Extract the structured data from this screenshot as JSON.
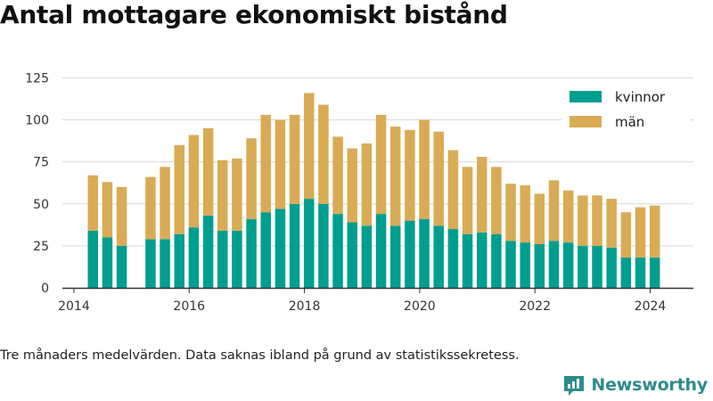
{
  "header": {
    "title": "Antal mottagare ekonomiskt bistånd"
  },
  "footer": {
    "note": "Tre månaders medelvärden. Data saknas ibland på grund av statistikssekretess.",
    "brand": "Newsworthy"
  },
  "colors": {
    "kvinnor": "#009e8f",
    "man": "#d9ab54",
    "grid": "#d9d9d9",
    "axis": "#333333",
    "brand": "#2c8c8c"
  },
  "chart_data": {
    "type": "bar",
    "stacked": true,
    "title": "Antal mottagare ekonomiskt bistånd",
    "xlabel": "",
    "ylabel": "",
    "ylim": [
      0,
      130
    ],
    "xlim": [
      2013.8,
      2024.75
    ],
    "y_ticks": [
      0,
      25,
      50,
      75,
      100,
      125
    ],
    "x_ticks": [
      2014,
      2016,
      2018,
      2020,
      2022,
      2024
    ],
    "grid": true,
    "legend_position": "top-right",
    "x": [
      2014.33,
      2014.58,
      2014.83,
      2015.33,
      2015.58,
      2015.83,
      2016.08,
      2016.33,
      2016.58,
      2016.83,
      2017.08,
      2017.33,
      2017.58,
      2017.83,
      2018.08,
      2018.33,
      2018.58,
      2018.83,
      2019.08,
      2019.33,
      2019.58,
      2019.83,
      2020.08,
      2020.33,
      2020.58,
      2020.83,
      2021.08,
      2021.33,
      2021.58,
      2021.83,
      2022.08,
      2022.33,
      2022.58,
      2022.83,
      2023.08,
      2023.33,
      2023.58,
      2023.83,
      2024.08
    ],
    "series": [
      {
        "name": "kvinnor",
        "values": [
          34,
          30,
          25,
          29,
          29,
          32,
          36,
          43,
          34,
          34,
          41,
          45,
          47,
          50,
          53,
          50,
          44,
          39,
          37,
          44,
          37,
          40,
          41,
          37,
          35,
          32,
          33,
          32,
          28,
          27,
          26,
          28,
          27,
          25,
          25,
          24,
          18,
          18,
          18
        ]
      },
      {
        "name": "män",
        "values": [
          33,
          33,
          35,
          37,
          43,
          53,
          55,
          52,
          42,
          43,
          48,
          58,
          53,
          53,
          63,
          59,
          46,
          44,
          49,
          59,
          59,
          54,
          59,
          56,
          47,
          40,
          45,
          40,
          34,
          34,
          30,
          36,
          31,
          30,
          30,
          29,
          27,
          30,
          31
        ]
      }
    ]
  }
}
